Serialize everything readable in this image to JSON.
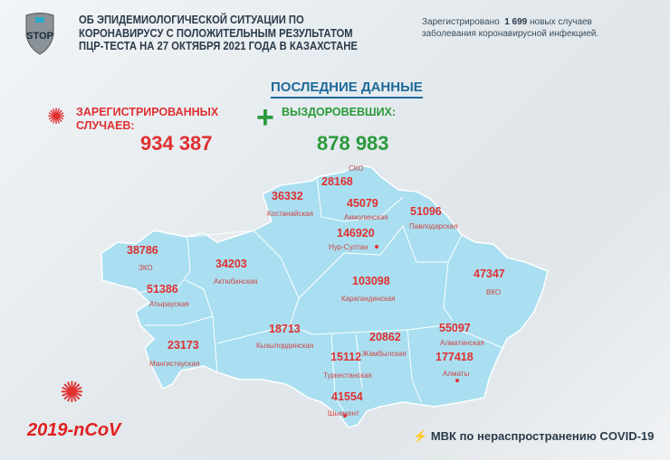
{
  "header": {
    "title_lines": [
      "ОБ ЭПИДЕМИОЛОГИЧЕСКОЙ СИТУАЦИИ ПО",
      "КОРОНАВИРУСУ С ПОЛОЖИТЕЛЬНЫМ РЕЗУЛЬТАТОМ",
      "ПЦР-ТЕСТА НА 27 ОКТЯБРЯ 2021 ГОДА В КАЗАХСТАНЕ"
    ],
    "logo_text": "STOP",
    "news_prefix": "Зарегистрировано",
    "news_count": "1 699",
    "news_suffix": "новых случаев",
    "news_line2": "заболевания коронавирусной инфекцией."
  },
  "latest": {
    "heading": "ПОСЛЕДНИЕ ДАННЫЕ",
    "registered_label_1": "ЗАРЕГИСТРИРОВАННЫХ",
    "registered_label_2": "СЛУЧАЕВ:",
    "registered_value": "934 387",
    "recovered_label": "ВЫЗДОРОВЕВШИХ:",
    "recovered_value": "878 983"
  },
  "regions": [
    {
      "name": "СКО",
      "value": "28168"
    },
    {
      "name": "Костанайская",
      "value": "36332"
    },
    {
      "name": "Акмолинская",
      "value": "45079"
    },
    {
      "name": "Павлодарская",
      "value": "51096"
    },
    {
      "name": "Нур-Султан",
      "value": "146920"
    },
    {
      "name": "ЗКО",
      "value": "38786"
    },
    {
      "name": "Актюбинская",
      "value": "34203"
    },
    {
      "name": "Атырауская",
      "value": "51386"
    },
    {
      "name": "Карагандинская",
      "value": "103098"
    },
    {
      "name": "ВКО",
      "value": "47347"
    },
    {
      "name": "Мангистауская",
      "value": "23173"
    },
    {
      "name": "Кызылординская",
      "value": "18713"
    },
    {
      "name": "Жамбылская",
      "value": "20862"
    },
    {
      "name": "Туркестанская",
      "value": "15112"
    },
    {
      "name": "Алматинская",
      "value": "55097"
    },
    {
      "name": "Алматы",
      "value": "177418"
    },
    {
      "name": "Шымкент",
      "value": "41554"
    }
  ],
  "colors": {
    "map": "#a9dff0",
    "red": "#e03030",
    "green": "#2a9a3a"
  },
  "footer": {
    "ncov": "2019-nCoV",
    "mvk": "МВК по нераспространению COVID-19"
  }
}
